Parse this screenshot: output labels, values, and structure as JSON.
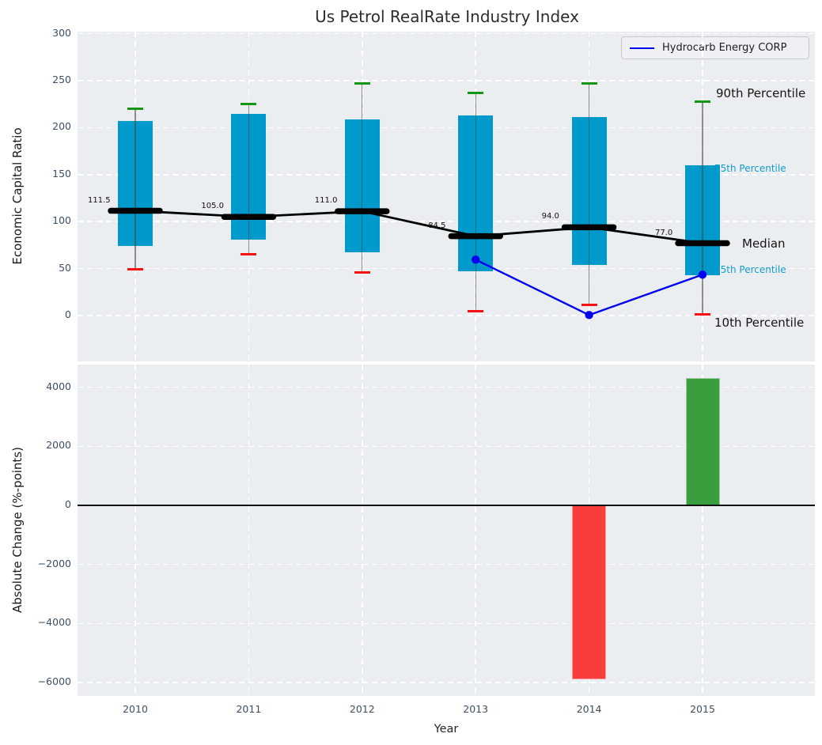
{
  "figure": {
    "title": "Us Petrol RealRate Industry Index",
    "xlabel": "Year"
  },
  "legend": {
    "label": "Hydrocarb Energy CORP"
  },
  "chart_data": [
    {
      "type": "boxplot",
      "title": "Us Petrol RealRate Industry Index",
      "ylabel": "Economic Capital Ratio",
      "xlabel": "Year",
      "categories": [
        "2010",
        "2011",
        "2012",
        "2013",
        "2014",
        "2015"
      ],
      "yticks": [
        0,
        50,
        100,
        150,
        200,
        250,
        300
      ],
      "ylim": [
        -48.9,
        302.3
      ],
      "grid": true,
      "legend_position": "upper-right",
      "boxes": [
        {
          "year": "2010",
          "p10": 49,
          "p25": 74,
          "median": 111.5,
          "p75": 207,
          "p90": 220
        },
        {
          "year": "2011",
          "p10": 65,
          "p25": 81,
          "median": 105.0,
          "p75": 215,
          "p90": 225
        },
        {
          "year": "2012",
          "p10": 46,
          "p25": 67,
          "median": 111.0,
          "p75": 209,
          "p90": 247
        },
        {
          "year": "2013",
          "p10": 5,
          "p25": 47,
          "median": 84.5,
          "p75": 213,
          "p90": 237
        },
        {
          "year": "2014",
          "p10": 11,
          "p25": 54,
          "median": 94.0,
          "p75": 211,
          "p90": 247
        },
        {
          "year": "2015",
          "p10": 1,
          "p25": 43,
          "median": 77.0,
          "p75": 160,
          "p90": 228
        }
      ],
      "median_labels": [
        "111.5",
        "105.0",
        "111.0",
        "84.5",
        "94.0",
        "77.0"
      ],
      "series": [
        {
          "name": "Hydrocarb Energy CORP",
          "x": [
            "2013",
            "2014",
            "2015"
          ],
          "values": [
            59.5,
            0.5,
            43.5
          ],
          "color": "#0000ee"
        }
      ],
      "annotations": [
        {
          "label": "90th Percentile",
          "value": 228,
          "x": 905,
          "dy": -10,
          "style": "black-large"
        },
        {
          "label": "75th Percentile",
          "value": 160,
          "x": 903,
          "dy": 4,
          "style": "cyan-small"
        },
        {
          "label": "Median",
          "value": 77,
          "x": 938,
          "dy": 0,
          "style": "black-large"
        },
        {
          "label": "25th Percentile",
          "value": 43,
          "x": 903,
          "dy": -7,
          "style": "cyan-small"
        },
        {
          "label": "10th Percentile",
          "value": 1,
          "x": 903,
          "dy": 10,
          "style": "black-large"
        }
      ],
      "colors": {
        "box": "#0099cb",
        "median_line": "#000000",
        "whisker": "rgba(70,70,70,0.6)",
        "cap_top": "#149614",
        "cap_bottom": "#f80f0f",
        "company_line": "#0000ee",
        "annotation_cyan": "#139bce"
      }
    },
    {
      "type": "bar",
      "ylabel": "Absolute Change (%-points)",
      "categories": [
        "2010",
        "2011",
        "2012",
        "2013",
        "2014",
        "2015"
      ],
      "values": [
        null,
        null,
        null,
        null,
        -5900,
        4300
      ],
      "yticks": [
        4000,
        2000,
        0,
        -2000,
        -4000,
        -6000
      ],
      "ylim": [
        -6455,
        4768
      ],
      "grid": true,
      "colors": {
        "positive": "#3a9d3e",
        "negative": "#f93d3d",
        "zero_line": "#111111"
      }
    }
  ],
  "style": {
    "plot_background": "#ebeef0",
    "grid_color": "#ffffff",
    "tick_label_color": "#3d4e63"
  }
}
